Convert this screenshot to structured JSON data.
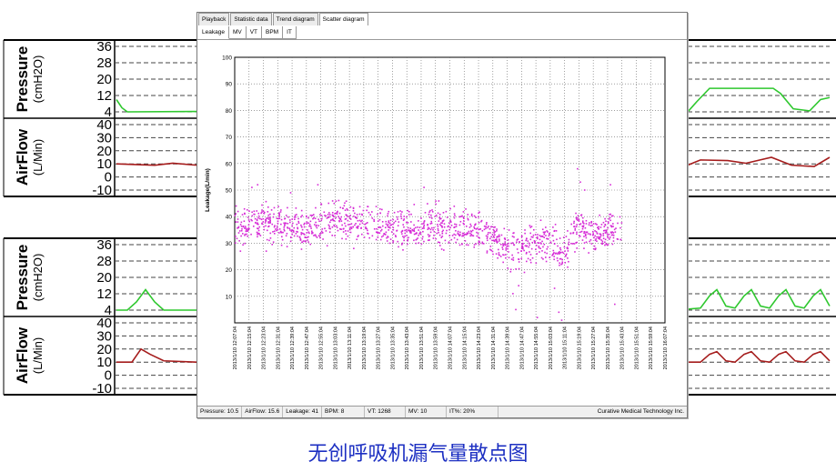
{
  "background": {
    "panels": [
      {
        "pressure": {
          "label": "Pressure",
          "unit": "(cmH2O)",
          "ticks": [
            "36",
            "28",
            "20",
            "12",
            "4"
          ]
        },
        "airflow": {
          "label": "AirFlow",
          "unit": "(L/Min)",
          "ticks": [
            "40",
            "30",
            "20",
            "10",
            "0",
            "-10"
          ]
        }
      },
      {
        "pressure": {
          "label": "Pressure",
          "unit": "(cmH2O)",
          "ticks": [
            "36",
            "28",
            "20",
            "12",
            "4"
          ]
        },
        "airflow": {
          "label": "AirFlow",
          "unit": "(L/Min)",
          "ticks": [
            "40",
            "30",
            "20",
            "10",
            "0",
            "-10"
          ]
        }
      }
    ],
    "colors": {
      "pressure": "#2fc82f",
      "airflow": "#a51c1c"
    }
  },
  "window": {
    "tabs": [
      "Playback",
      "Statistic data",
      "Trend diagram",
      "Scatter diagram"
    ],
    "active_tab": 3,
    "subtabs": [
      "Leakage",
      "MV",
      "VT",
      "BPM",
      "IT"
    ],
    "active_subtab": 0
  },
  "chart_data": {
    "type": "scatter",
    "title": "",
    "ylabel": "Leakage(L/min)",
    "xlabel": "",
    "ylim": [
      0,
      100
    ],
    "y_ticks": [
      "100",
      "90",
      "80",
      "70",
      "60",
      "50",
      "40",
      "30",
      "20",
      "10"
    ],
    "x_ticks": [
      "2013/1/10 12:07:04",
      "2013/1/10 12:15:04",
      "2013/1/10 12:23:04",
      "2013/1/10 12:31:04",
      "2013/1/10 12:39:04",
      "2013/1/10 12:47:04",
      "2013/1/10 12:55:04",
      "2013/1/10 13:03:04",
      "2013/1/10 13:11:04",
      "2013/1/10 13:19:04",
      "2013/1/10 13:27:04",
      "2013/1/10 13:35:04",
      "2013/1/10 13:43:04",
      "2013/1/10 13:51:04",
      "2013/1/10 13:59:04",
      "2013/1/10 14:07:04",
      "2013/1/10 14:15:04",
      "2013/1/10 14:23:04",
      "2013/1/10 14:31:04",
      "2013/1/10 14:39:04",
      "2013/1/10 14:47:04",
      "2013/1/10 14:55:04",
      "2013/1/10 15:03:04",
      "2013/1/10 15:11:04",
      "2013/1/10 15:19:04",
      "2013/1/10 15:27:04",
      "2013/1/10 15:35:04",
      "2013/1/10 15:43:04",
      "2013/1/10 15:51:04",
      "2013/1/10 15:59:04",
      "2013/1/10 16:07:04"
    ],
    "grid": true,
    "marker_color": "#d62ad6",
    "trend": [
      {
        "x": 0,
        "y": 36
      },
      {
        "x": 2,
        "y": 38
      },
      {
        "x": 4,
        "y": 36
      },
      {
        "x": 5,
        "y": 35
      },
      {
        "x": 6,
        "y": 37
      },
      {
        "x": 8,
        "y": 39
      },
      {
        "x": 10,
        "y": 36
      },
      {
        "x": 12,
        "y": 35
      },
      {
        "x": 14,
        "y": 37
      },
      {
        "x": 16,
        "y": 35
      },
      {
        "x": 18,
        "y": 33
      },
      {
        "x": 19,
        "y": 27
      },
      {
        "x": 20,
        "y": 28
      },
      {
        "x": 21,
        "y": 31
      },
      {
        "x": 22,
        "y": 30
      },
      {
        "x": 23,
        "y": 27
      },
      {
        "x": 24,
        "y": 37
      },
      {
        "x": 25,
        "y": 33
      },
      {
        "x": 26,
        "y": 34
      },
      {
        "x": 27,
        "y": 35
      }
    ],
    "outliers": [
      {
        "x": 19.6,
        "y": 5
      },
      {
        "x": 19.4,
        "y": 11
      },
      {
        "x": 19.8,
        "y": 14
      },
      {
        "x": 20.2,
        "y": 19
      },
      {
        "x": 21.1,
        "y": 2
      },
      {
        "x": 22.3,
        "y": 13
      },
      {
        "x": 22.6,
        "y": 4
      },
      {
        "x": 22.8,
        "y": 1
      },
      {
        "x": 23.9,
        "y": 58
      },
      {
        "x": 24.1,
        "y": 53
      },
      {
        "x": 24.4,
        "y": 50
      },
      {
        "x": 26.5,
        "y": 7
      },
      {
        "x": 26.2,
        "y": 52
      },
      {
        "x": 1.2,
        "y": 51
      },
      {
        "x": 1.6,
        "y": 52
      },
      {
        "x": 3.9,
        "y": 49
      },
      {
        "x": 5.8,
        "y": 52
      },
      {
        "x": 13.2,
        "y": 51
      },
      {
        "x": 0.4,
        "y": 27
      },
      {
        "x": 2.2,
        "y": 27
      },
      {
        "x": 8.3,
        "y": 28
      },
      {
        "x": 17.6,
        "y": 27
      },
      {
        "x": 0.1,
        "y": 44
      }
    ]
  },
  "status": [
    "Pressure: 10.5",
    "AirFlow: 15.6",
    "Leakage: 41",
    "BPM: 8",
    "VT: 1268",
    "MV: 10",
    "IT%: 20%",
    "Curative Medical Technology Inc."
  ],
  "caption": "无创呼吸机漏气量散点图"
}
